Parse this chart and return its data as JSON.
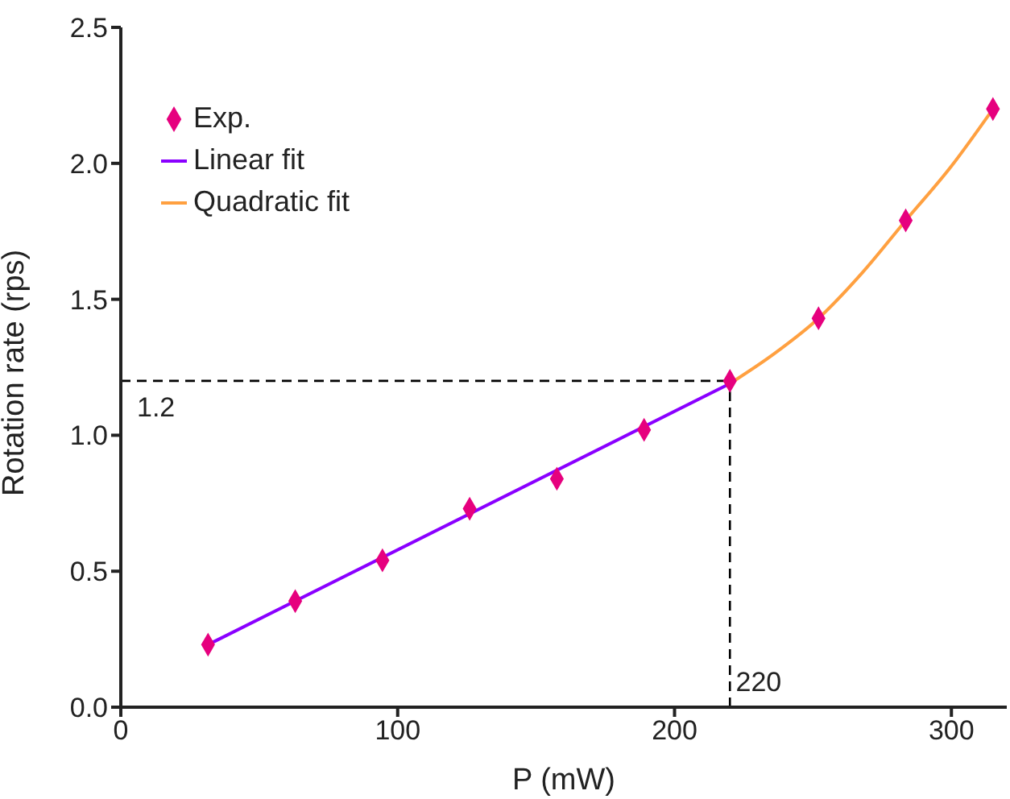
{
  "chart_data": {
    "type": "scatter",
    "xlabel": "P (mW)",
    "ylabel": "Rotation rate (rps)",
    "xlim": [
      0,
      320
    ],
    "xticks": [
      0,
      100,
      200,
      300
    ],
    "ylim": [
      0,
      2.5
    ],
    "yticks": [
      {
        "value": 0,
        "label": "0.0"
      },
      0.5,
      {
        "value": 1,
        "label": "1.0"
      },
      1.5,
      {
        "value": 2,
        "label": "2.0"
      },
      2.5
    ],
    "grid": false,
    "legend": "top left",
    "series": [
      {
        "name": "Exp.",
        "marker": "diamond",
        "color": "#e6007e",
        "x": [
          31.5,
          63,
          94.5,
          126,
          157.5,
          189,
          220,
          252,
          283.5,
          315
        ],
        "values": [
          0.23,
          0.39,
          0.54,
          0.73,
          0.84,
          1.02,
          1.2,
          1.43,
          1.79,
          2.2
        ]
      },
      {
        "name": "Linear fit",
        "type": "line",
        "marker": "none",
        "color": "#8a00ff",
        "x": [
          31.5,
          220
        ],
        "values": [
          0.23,
          1.19
        ]
      },
      {
        "name": "Quadratic fit",
        "type": "line",
        "marker": "none",
        "color": "#ffa040",
        "x": [
          220,
          236,
          252,
          268,
          283.5,
          300,
          315
        ],
        "values": [
          1.19,
          1.3,
          1.43,
          1.6,
          1.79,
          1.99,
          2.2
        ]
      }
    ],
    "ref_lines": [
      {
        "axis": "y",
        "value": 1.2,
        "label": "1.2",
        "color": "#000000",
        "line_style": "dashed"
      },
      {
        "axis": "x",
        "value": 220,
        "label": "220",
        "color": "#000000",
        "line_style": "dashed"
      }
    ]
  }
}
